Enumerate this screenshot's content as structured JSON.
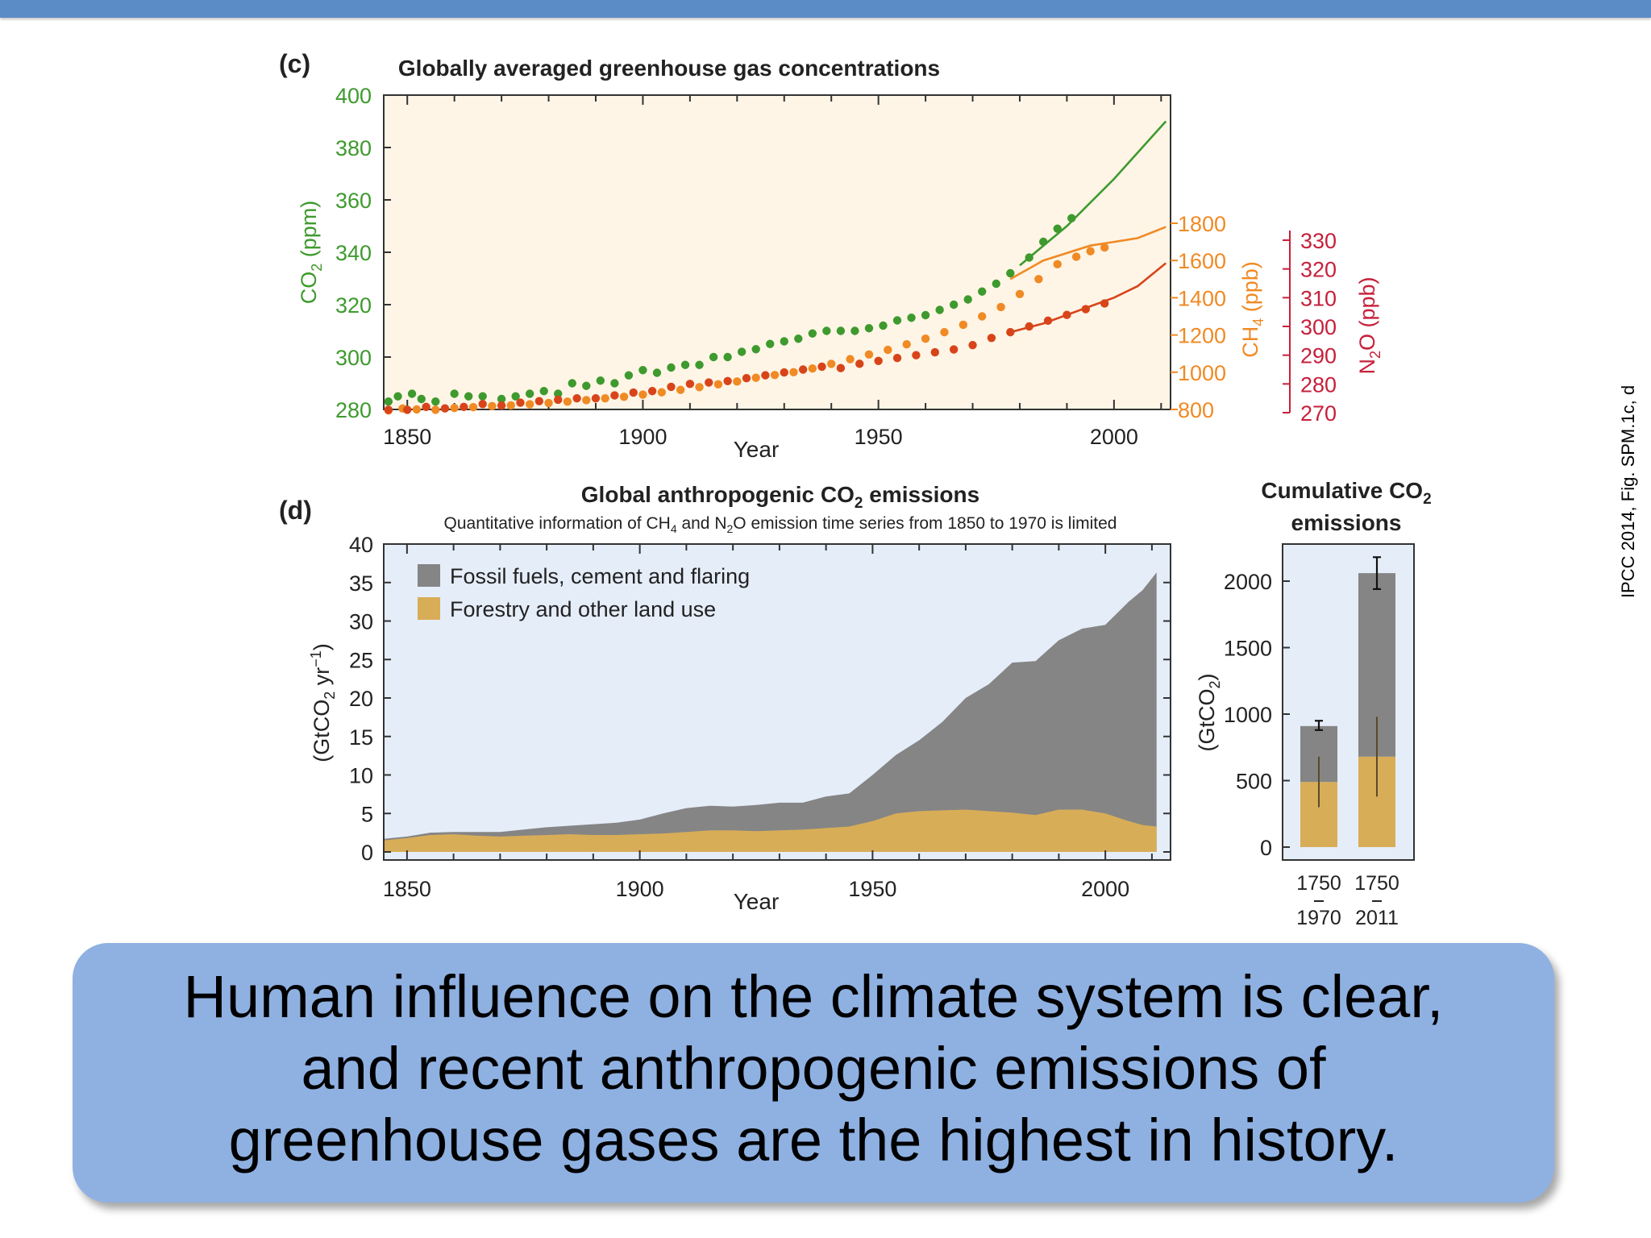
{
  "credit": "IPCC 2014, Fig. SPM.1c, d",
  "caption": {
    "line1": "Human influence on the climate system is clear,",
    "line2": "and recent anthropogenic emissions of",
    "line3": "greenhouse gases are the highest in history."
  },
  "colors": {
    "banner": "#5b8cc6",
    "caption_box": "#8fb1e2",
    "co2": "#3e9a2e",
    "ch4": "#f08a24",
    "n2o": "#d8441a",
    "n2o_axis": "#c6203b",
    "panel_c_bg": "#fef5e6",
    "panel_d_bg": "#e5edf9",
    "fossil": "#858585",
    "land": "#d8ad58"
  },
  "chart_data": [
    {
      "panel": "(c)",
      "type": "scatter",
      "title": "Globally averaged greenhouse gas concentrations",
      "xlabel": "Year",
      "xlim": [
        1845,
        2012
      ],
      "xticks": [
        1850,
        1900,
        1950,
        2000
      ],
      "axes": {
        "co2": {
          "label": "CO2 (ppm)",
          "range": [
            280,
            400
          ],
          "ticks": [
            280,
            300,
            320,
            340,
            360,
            380,
            400
          ]
        },
        "ch4": {
          "label": "CH4 (ppb)",
          "range": [
            800,
            1800
          ],
          "ticks": [
            800,
            1000,
            1200,
            1400,
            1600,
            1800
          ]
        },
        "n2o": {
          "label": "N2O (ppb)",
          "range": [
            270,
            330
          ],
          "ticks": [
            270,
            280,
            290,
            300,
            310,
            320,
            330
          ]
        }
      },
      "series": [
        {
          "name": "CO2",
          "axis": "co2",
          "points": [
            [
              1846,
              283
            ],
            [
              1848,
              285
            ],
            [
              1851,
              286
            ],
            [
              1853,
              284
            ],
            [
              1856,
              283
            ],
            [
              1860,
              286
            ],
            [
              1863,
              285
            ],
            [
              1866,
              285
            ],
            [
              1870,
              284
            ],
            [
              1873,
              285
            ],
            [
              1876,
              286
            ],
            [
              1879,
              287
            ],
            [
              1882,
              286
            ],
            [
              1885,
              290
            ],
            [
              1888,
              289
            ],
            [
              1891,
              291
            ],
            [
              1894,
              290
            ],
            [
              1897,
              293
            ],
            [
              1900,
              295
            ],
            [
              1903,
              294
            ],
            [
              1906,
              296
            ],
            [
              1909,
              297
            ],
            [
              1912,
              297
            ],
            [
              1915,
              300
            ],
            [
              1918,
              300
            ],
            [
              1921,
              302
            ],
            [
              1924,
              303
            ],
            [
              1927,
              305
            ],
            [
              1930,
              306
            ],
            [
              1933,
              307
            ],
            [
              1936,
              309
            ],
            [
              1939,
              310
            ],
            [
              1942,
              310
            ],
            [
              1945,
              310
            ],
            [
              1948,
              311
            ],
            [
              1951,
              312
            ],
            [
              1954,
              314
            ],
            [
              1957,
              315
            ],
            [
              1960,
              316
            ],
            [
              1963,
              318
            ],
            [
              1966,
              320
            ],
            [
              1969,
              322
            ],
            [
              1972,
              325
            ],
            [
              1975,
              328
            ],
            [
              1978,
              332
            ],
            [
              1982,
              338
            ],
            [
              1985,
              344
            ],
            [
              1988,
              349
            ],
            [
              1991,
              353
            ]
          ],
          "line": [
            [
              1980,
              335
            ],
            [
              1990,
              350
            ],
            [
              2000,
              368
            ],
            [
              2005,
              378
            ],
            [
              2011,
              390
            ]
          ]
        },
        {
          "name": "CH4",
          "axis": "ch4",
          "points": [
            [
              1846,
              795
            ],
            [
              1849,
              805
            ],
            [
              1852,
              800
            ],
            [
              1856,
              798
            ],
            [
              1860,
              808
            ],
            [
              1864,
              812
            ],
            [
              1868,
              818
            ],
            [
              1872,
              822
            ],
            [
              1876,
              828
            ],
            [
              1880,
              835
            ],
            [
              1884,
              842
            ],
            [
              1888,
              850
            ],
            [
              1892,
              860
            ],
            [
              1896,
              868
            ],
            [
              1900,
              880
            ],
            [
              1904,
              892
            ],
            [
              1908,
              905
            ],
            [
              1912,
              920
            ],
            [
              1916,
              935
            ],
            [
              1920,
              950
            ],
            [
              1924,
              970
            ],
            [
              1928,
              985
            ],
            [
              1932,
              1000
            ],
            [
              1936,
              1020
            ],
            [
              1940,
              1045
            ],
            [
              1944,
              1070
            ],
            [
              1948,
              1095
            ],
            [
              1952,
              1120
            ],
            [
              1956,
              1150
            ],
            [
              1960,
              1180
            ],
            [
              1964,
              1215
            ],
            [
              1968,
              1255
            ],
            [
              1972,
              1300
            ],
            [
              1976,
              1350
            ],
            [
              1980,
              1420
            ],
            [
              1984,
              1500
            ],
            [
              1988,
              1580
            ],
            [
              1992,
              1620
            ],
            [
              1995,
              1650
            ],
            [
              1998,
              1670
            ]
          ],
          "line": [
            [
              1978,
              1500
            ],
            [
              1985,
              1600
            ],
            [
              1995,
              1680
            ],
            [
              2000,
              1700
            ],
            [
              2005,
              1720
            ],
            [
              2011,
              1780
            ]
          ]
        },
        {
          "name": "N2O",
          "axis": "n2o",
          "points": [
            [
              1846,
              271
            ],
            [
              1850,
              271
            ],
            [
              1854,
              272
            ],
            [
              1858,
              271.5
            ],
            [
              1862,
              272
            ],
            [
              1866,
              273
            ],
            [
              1870,
              272.5
            ],
            [
              1874,
              273.5
            ],
            [
              1878,
              274
            ],
            [
              1882,
              274.5
            ],
            [
              1886,
              275
            ],
            [
              1890,
              275
            ],
            [
              1894,
              276
            ],
            [
              1898,
              277
            ],
            [
              1902,
              277.5
            ],
            [
              1906,
              279
            ],
            [
              1910,
              280
            ],
            [
              1914,
              280.5
            ],
            [
              1918,
              281
            ],
            [
              1922,
              282
            ],
            [
              1926,
              283
            ],
            [
              1930,
              284
            ],
            [
              1934,
              285
            ],
            [
              1938,
              286
            ],
            [
              1942,
              285.5
            ],
            [
              1946,
              287
            ],
            [
              1950,
              288
            ],
            [
              1954,
              289
            ],
            [
              1958,
              290
            ],
            [
              1962,
              291
            ],
            [
              1966,
              292
            ],
            [
              1970,
              293.5
            ],
            [
              1974,
              296
            ],
            [
              1978,
              298
            ],
            [
              1982,
              300
            ],
            [
              1986,
              302
            ],
            [
              1990,
              304
            ],
            [
              1994,
              306
            ],
            [
              1998,
              308
            ]
          ],
          "line": [
            [
              1978,
              298
            ],
            [
              1985,
              301
            ],
            [
              1995,
              307
            ],
            [
              2000,
              310
            ],
            [
              2005,
              314
            ],
            [
              2011,
              322
            ]
          ]
        }
      ]
    },
    {
      "panel": "(d)",
      "type": "area",
      "title": "Global anthropogenic CO2 emissions",
      "subtitle": "Quantitative information of CH4 and N2O emission time series from 1850 to 1970 is limited",
      "xlabel": "Year",
      "ylabel": "(GtCO2 yr-1)",
      "xlim": [
        1845,
        2014
      ],
      "ylim": [
        0,
        40
      ],
      "xticks": [
        1850,
        1900,
        1950,
        2000
      ],
      "yticks": [
        0,
        5,
        10,
        15,
        20,
        25,
        30,
        35,
        40
      ],
      "legend_position": "top-left",
      "x": [
        1845,
        1850,
        1855,
        1860,
        1865,
        1870,
        1875,
        1880,
        1885,
        1890,
        1895,
        1900,
        1905,
        1910,
        1915,
        1920,
        1925,
        1930,
        1935,
        1940,
        1945,
        1950,
        1955,
        1960,
        1965,
        1970,
        1975,
        1980,
        1985,
        1990,
        1995,
        2000,
        2005,
        2008,
        2011
      ],
      "series": [
        {
          "name": "Forestry and other land use",
          "values": [
            1.5,
            1.8,
            2.2,
            2.3,
            2.1,
            2.0,
            2.1,
            2.2,
            2.3,
            2.2,
            2.2,
            2.3,
            2.4,
            2.6,
            2.8,
            2.8,
            2.7,
            2.8,
            2.9,
            3.1,
            3.3,
            4.0,
            5.0,
            5.3,
            5.4,
            5.5,
            5.3,
            5.1,
            4.8,
            5.5,
            5.5,
            5.0,
            4.0,
            3.5,
            3.3
          ]
        },
        {
          "name": "Fossil fuels, cement and flaring",
          "values": [
            0.2,
            0.2,
            0.3,
            0.3,
            0.5,
            0.6,
            0.8,
            1.0,
            1.1,
            1.4,
            1.6,
            1.9,
            2.6,
            3.1,
            3.2,
            3.1,
            3.4,
            3.6,
            3.5,
            4.1,
            4.3,
            6.0,
            7.6,
            9.2,
            11.5,
            14.5,
            16.5,
            19.5,
            20.0,
            22.0,
            23.5,
            24.5,
            28.5,
            30.5,
            33.0
          ]
        }
      ]
    },
    {
      "panel": "cumulative",
      "type": "bar",
      "title": "Cumulative CO2 emissions",
      "ylabel": "(GtCO2)",
      "ylim": [
        0,
        2300
      ],
      "yticks": [
        0,
        500,
        1000,
        1500,
        2000
      ],
      "categories": [
        {
          "start": "1750",
          "end": "1970"
        },
        {
          "start": "1750",
          "end": "2011"
        }
      ],
      "series": [
        {
          "name": "Forestry and other land use",
          "values": [
            490,
            680
          ],
          "error": [
            [
              300,
              680
            ],
            [
              380,
              980
            ]
          ]
        },
        {
          "name": "Fossil fuels, cement and flaring",
          "values": [
            420,
            1380
          ]
        }
      ],
      "totals": [
        910,
        2060
      ],
      "total_error": [
        [
          880,
          950
        ],
        [
          1940,
          2180
        ]
      ]
    }
  ]
}
